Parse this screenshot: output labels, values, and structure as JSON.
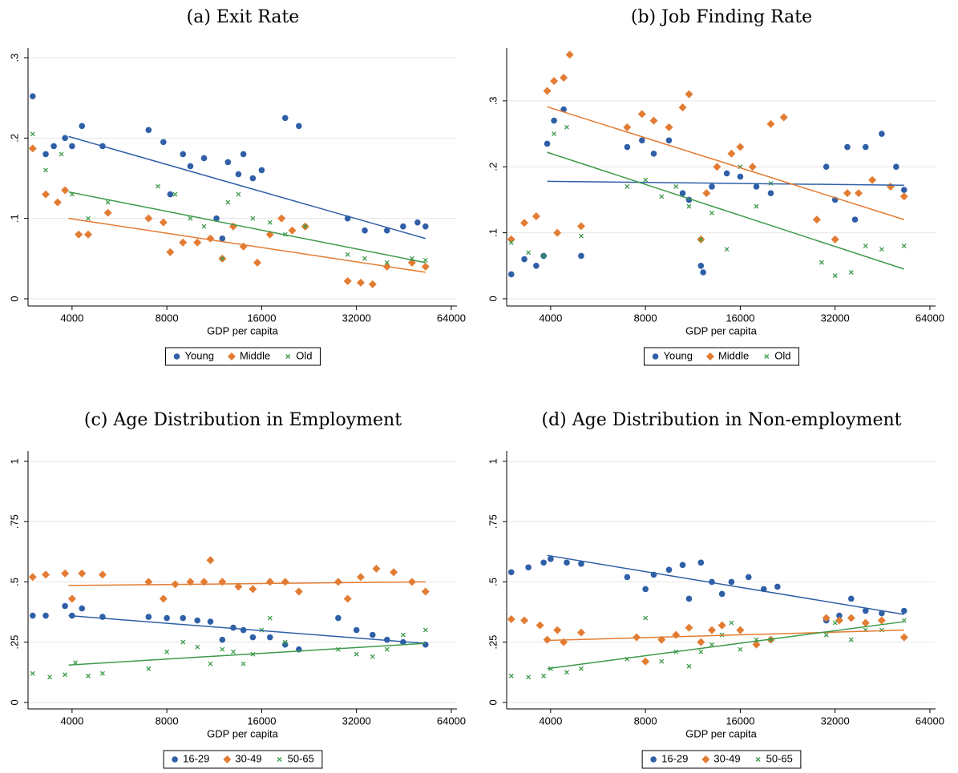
{
  "chart_data": [
    {
      "type": "scatter",
      "title": "(a) Exit Rate",
      "xlabel": "GDP per capita",
      "xscale": "log",
      "xlim": [
        2900,
        66700
      ],
      "xticks": [
        4000,
        8000,
        16000,
        32000,
        64000
      ],
      "ylim": [
        -0.009,
        0.312
      ],
      "yticks": [
        0,
        {
          "value": 0.1,
          "label": ".1"
        },
        {
          "value": 0.2,
          "label": ".2"
        },
        {
          "value": 0.3,
          "label": ".3"
        }
      ],
      "grid": true,
      "legend": "bottom",
      "series": [
        {
          "name": "Young",
          "color": "#2f5fa7",
          "marker": "circle",
          "x": [
            3000,
            3300,
            3500,
            3800,
            4000,
            4300,
            5000,
            7000,
            7800,
            9000,
            9500,
            10500,
            11500,
            12500,
            13500,
            15000,
            16000,
            19000,
            21000,
            12000,
            30000,
            34000,
            40000,
            45000,
            50000,
            53000,
            8200,
            14000
          ],
          "y": [
            0.252,
            0.18,
            0.19,
            0.2,
            0.19,
            0.215,
            0.19,
            0.21,
            0.195,
            0.18,
            0.165,
            0.175,
            0.1,
            0.17,
            0.155,
            0.15,
            0.16,
            0.225,
            0.215,
            0.075,
            0.1,
            0.085,
            0.085,
            0.09,
            0.095,
            0.09,
            0.13,
            0.18
          ],
          "fit_x": [
            3900,
            53000
          ],
          "fit_y": [
            0.202,
            0.075
          ]
        },
        {
          "name": "Middle",
          "color": "#e37c33",
          "marker": "diamond",
          "x": [
            3000,
            3300,
            3600,
            3800,
            4200,
            4500,
            5200,
            7000,
            7800,
            8200,
            9000,
            10000,
            11000,
            12000,
            13000,
            14000,
            15500,
            17000,
            18500,
            20000,
            22000,
            30000,
            33000,
            36000,
            40000,
            48000,
            53000
          ],
          "y": [
            0.187,
            0.13,
            0.12,
            0.135,
            0.08,
            0.08,
            0.107,
            0.1,
            0.095,
            0.058,
            0.07,
            0.07,
            0.075,
            0.05,
            0.09,
            0.065,
            0.045,
            0.08,
            0.1,
            0.085,
            0.09,
            0.022,
            0.02,
            0.018,
            0.04,
            0.045,
            0.04
          ],
          "fit_x": [
            3900,
            53000
          ],
          "fit_y": [
            0.1,
            0.033
          ]
        },
        {
          "name": "Old",
          "color": "#3c9a4a",
          "marker": "x",
          "x": [
            3000,
            3300,
            3700,
            4000,
            4500,
            5200,
            7500,
            8500,
            9500,
            10500,
            12000,
            12500,
            13500,
            15000,
            17000,
            19000,
            22000,
            30000,
            34000,
            40000,
            48000,
            53000
          ],
          "y": [
            0.205,
            0.16,
            0.18,
            0.13,
            0.1,
            0.12,
            0.14,
            0.13,
            0.1,
            0.09,
            0.05,
            0.12,
            0.13,
            0.1,
            0.095,
            0.08,
            0.09,
            0.055,
            0.05,
            0.045,
            0.05,
            0.048
          ],
          "fit_x": [
            3900,
            53000
          ],
          "fit_y": [
            0.133,
            0.045
          ]
        }
      ]
    },
    {
      "type": "scatter",
      "title": "(b) Job Finding Rate",
      "xlabel": "GDP per capita",
      "xscale": "log",
      "xlim": [
        2900,
        66700
      ],
      "xticks": [
        4000,
        8000,
        16000,
        32000,
        64000
      ],
      "ylim": [
        -0.011,
        0.38
      ],
      "yticks": [
        0,
        {
          "value": 0.1,
          "label": ".1"
        },
        {
          "value": 0.2,
          "label": ".2"
        },
        {
          "value": 0.3,
          "label": ".3"
        }
      ],
      "grid": true,
      "legend": "bottom",
      "series": [
        {
          "name": "Young",
          "color": "#2f5fa7",
          "marker": "circle",
          "x": [
            3000,
            3300,
            3600,
            3800,
            3900,
            4100,
            4400,
            5000,
            7000,
            7800,
            8500,
            9500,
            10500,
            11000,
            12000,
            12200,
            13000,
            14500,
            16000,
            18000,
            20000,
            30000,
            32000,
            35000,
            37000,
            40000,
            45000,
            50000,
            53000
          ],
          "y": [
            0.037,
            0.06,
            0.05,
            0.065,
            0.235,
            0.27,
            0.287,
            0.065,
            0.23,
            0.24,
            0.22,
            0.24,
            0.16,
            0.15,
            0.05,
            0.04,
            0.17,
            0.19,
            0.185,
            0.17,
            0.16,
            0.2,
            0.15,
            0.23,
            0.12,
            0.23,
            0.25,
            0.2,
            0.165
          ],
          "fit_x": [
            3900,
            53000
          ],
          "fit_y": [
            0.178,
            0.172
          ]
        },
        {
          "name": "Middle",
          "color": "#e37c33",
          "marker": "diamond",
          "x": [
            3000,
            3300,
            3600,
            3900,
            4100,
            4400,
            4600,
            4200,
            5000,
            7000,
            7800,
            8500,
            9500,
            10500,
            11000,
            12000,
            12500,
            13500,
            15000,
            16000,
            17500,
            20000,
            22000,
            28000,
            32000,
            35000,
            38000,
            42000,
            48000,
            53000
          ],
          "y": [
            0.09,
            0.115,
            0.125,
            0.315,
            0.33,
            0.335,
            0.37,
            0.1,
            0.11,
            0.26,
            0.28,
            0.27,
            0.26,
            0.29,
            0.31,
            0.09,
            0.16,
            0.2,
            0.22,
            0.23,
            0.2,
            0.265,
            0.275,
            0.12,
            0.09,
            0.16,
            0.16,
            0.18,
            0.17,
            0.155
          ],
          "fit_x": [
            3900,
            53000
          ],
          "fit_y": [
            0.291,
            0.12
          ]
        },
        {
          "name": "Old",
          "color": "#3c9a4a",
          "marker": "x",
          "x": [
            3000,
            3400,
            3800,
            4100,
            4500,
            5000,
            7000,
            8000,
            9000,
            10000,
            11000,
            12000,
            13000,
            14500,
            16000,
            18000,
            20000,
            29000,
            32000,
            36000,
            40000,
            45000,
            53000
          ],
          "y": [
            0.085,
            0.07,
            0.065,
            0.25,
            0.26,
            0.095,
            0.17,
            0.18,
            0.155,
            0.17,
            0.14,
            0.09,
            0.13,
            0.075,
            0.2,
            0.14,
            0.175,
            0.055,
            0.035,
            0.04,
            0.08,
            0.075,
            0.08
          ],
          "fit_x": [
            3900,
            53000
          ],
          "fit_y": [
            0.222,
            0.045
          ]
        }
      ]
    },
    {
      "type": "scatter",
      "title": "(c) Age Distribution in Employment",
      "xlabel": "GDP per capita",
      "xscale": "log",
      "xlim": [
        2900,
        66700
      ],
      "xticks": [
        4000,
        8000,
        16000,
        32000,
        64000
      ],
      "ylim": [
        -0.027,
        1.043
      ],
      "yticks": [
        0,
        {
          "value": 0.25,
          "label": ".25"
        },
        {
          "value": 0.5,
          "label": ".5"
        },
        {
          "value": 0.75,
          "label": ".75"
        },
        1
      ],
      "grid": true,
      "legend": "bottom",
      "series": [
        {
          "name": "16-29",
          "color": "#2f5fa7",
          "marker": "circle",
          "x": [
            3000,
            3300,
            3800,
            4000,
            4300,
            5000,
            7000,
            8000,
            9000,
            10000,
            11000,
            12000,
            13000,
            14000,
            15000,
            17000,
            19000,
            21000,
            28000,
            32000,
            36000,
            40000,
            45000,
            53000
          ],
          "y": [
            0.36,
            0.36,
            0.4,
            0.36,
            0.39,
            0.355,
            0.355,
            0.35,
            0.35,
            0.34,
            0.335,
            0.26,
            0.31,
            0.3,
            0.27,
            0.27,
            0.24,
            0.22,
            0.35,
            0.3,
            0.28,
            0.26,
            0.25,
            0.24
          ],
          "fit_x": [
            3900,
            53000
          ],
          "fit_y": [
            0.36,
            0.245
          ]
        },
        {
          "name": "30-49",
          "color": "#e37c33",
          "marker": "diamond",
          "x": [
            3000,
            3300,
            3800,
            4000,
            4300,
            5000,
            7000,
            7800,
            8500,
            9500,
            10500,
            11000,
            12000,
            13500,
            15000,
            17000,
            19000,
            21000,
            28000,
            30000,
            33000,
            37000,
            42000,
            48000,
            53000
          ],
          "y": [
            0.52,
            0.53,
            0.535,
            0.43,
            0.535,
            0.53,
            0.5,
            0.43,
            0.49,
            0.5,
            0.5,
            0.59,
            0.5,
            0.48,
            0.47,
            0.5,
            0.5,
            0.46,
            0.5,
            0.43,
            0.52,
            0.555,
            0.54,
            0.5,
            0.46
          ],
          "fit_x": [
            3900,
            53000
          ],
          "fit_y": [
            0.485,
            0.5
          ]
        },
        {
          "name": "50-65",
          "color": "#3c9a4a",
          "marker": "x",
          "x": [
            3000,
            3400,
            3800,
            4100,
            4500,
            5000,
            7000,
            8000,
            9000,
            10000,
            11000,
            12000,
            13000,
            14000,
            15000,
            16000,
            17000,
            19000,
            28000,
            32000,
            36000,
            40000,
            45000,
            53000
          ],
          "y": [
            0.12,
            0.105,
            0.115,
            0.165,
            0.11,
            0.12,
            0.14,
            0.21,
            0.25,
            0.23,
            0.16,
            0.22,
            0.21,
            0.16,
            0.2,
            0.3,
            0.35,
            0.25,
            0.22,
            0.2,
            0.19,
            0.22,
            0.28,
            0.3
          ],
          "fit_x": [
            3900,
            53000
          ],
          "fit_y": [
            0.155,
            0.245
          ]
        }
      ]
    },
    {
      "type": "scatter",
      "title": "(d) Age Distribution in Non-employment",
      "xlabel": "GDP per capita",
      "xscale": "log",
      "xlim": [
        2900,
        66700
      ],
      "xticks": [
        4000,
        8000,
        16000,
        32000,
        64000
      ],
      "ylim": [
        -0.027,
        1.043
      ],
      "yticks": [
        0,
        {
          "value": 0.25,
          "label": ".25"
        },
        {
          "value": 0.5,
          "label": ".5"
        },
        {
          "value": 0.75,
          "label": ".75"
        },
        1
      ],
      "grid": true,
      "legend": "bottom",
      "series": [
        {
          "name": "16-29",
          "color": "#2f5fa7",
          "marker": "circle",
          "x": [
            3000,
            3400,
            3800,
            4000,
            4500,
            5000,
            7000,
            8000,
            8500,
            9500,
            10500,
            11000,
            12000,
            13000,
            14000,
            15000,
            17000,
            19000,
            21000,
            30000,
            33000,
            36000,
            40000,
            45000,
            53000
          ],
          "y": [
            0.54,
            0.56,
            0.58,
            0.595,
            0.58,
            0.575,
            0.52,
            0.47,
            0.53,
            0.55,
            0.57,
            0.43,
            0.58,
            0.5,
            0.45,
            0.5,
            0.52,
            0.47,
            0.48,
            0.34,
            0.36,
            0.43,
            0.38,
            0.37,
            0.38
          ],
          "fit_x": [
            3900,
            53000
          ],
          "fit_y": [
            0.61,
            0.365
          ]
        },
        {
          "name": "30-49",
          "color": "#e37c33",
          "marker": "diamond",
          "x": [
            3000,
            3300,
            3700,
            3900,
            4200,
            4400,
            5000,
            7500,
            8000,
            9000,
            10000,
            11000,
            12000,
            13000,
            14000,
            16000,
            18000,
            20000,
            30000,
            33000,
            36000,
            40000,
            45000,
            53000
          ],
          "y": [
            0.345,
            0.34,
            0.32,
            0.26,
            0.3,
            0.25,
            0.29,
            0.27,
            0.17,
            0.26,
            0.28,
            0.31,
            0.25,
            0.3,
            0.32,
            0.3,
            0.24,
            0.26,
            0.35,
            0.34,
            0.35,
            0.33,
            0.34,
            0.27
          ],
          "fit_x": [
            3900,
            53000
          ],
          "fit_y": [
            0.257,
            0.3
          ]
        },
        {
          "name": "50-65",
          "color": "#3c9a4a",
          "marker": "x",
          "x": [
            3000,
            3400,
            3800,
            4000,
            4500,
            5000,
            7000,
            8000,
            9000,
            10000,
            11000,
            12000,
            13000,
            14000,
            15000,
            16000,
            18000,
            20000,
            30000,
            32000,
            36000,
            40000,
            45000,
            53000
          ],
          "y": [
            0.11,
            0.105,
            0.11,
            0.14,
            0.125,
            0.14,
            0.18,
            0.35,
            0.17,
            0.21,
            0.15,
            0.21,
            0.24,
            0.28,
            0.33,
            0.22,
            0.26,
            0.26,
            0.28,
            0.33,
            0.26,
            0.3,
            0.3,
            0.34
          ],
          "fit_x": [
            3900,
            53000
          ],
          "fit_y": [
            0.14,
            0.335
          ]
        }
      ]
    }
  ]
}
